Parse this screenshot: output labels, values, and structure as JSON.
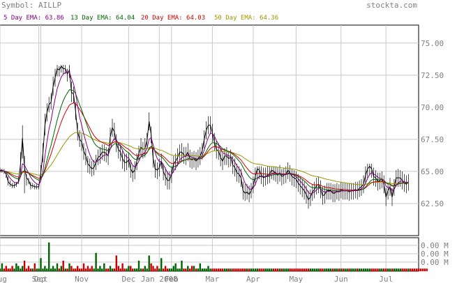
{
  "header": {
    "symbol_label": "Symbol: AILLP",
    "site": "stockta.com"
  },
  "legend": [
    {
      "label": "5 Day EMA: 63.86",
      "color": "#800080"
    },
    {
      "label": "13 Day EMA: 64.04",
      "color": "#006400"
    },
    {
      "label": "20 Day EMA: 64.03",
      "color": "#cc0000"
    },
    {
      "label": "50 Day EMA: 64.36",
      "color": "#999900"
    }
  ],
  "colors": {
    "price": "#000000",
    "grid": "#c8c8c8",
    "axis_text": "#808080",
    "header_text": "#808080",
    "volume_up": "#006400",
    "volume_down": "#cc0000"
  },
  "chart_data": {
    "type": "line",
    "title": "Symbol: AILLP",
    "ylim": [
      60.0,
      76.4
    ],
    "y_ticks": [
      62.5,
      65.0,
      67.5,
      70.0,
      72.5,
      75.0
    ],
    "y_tick_labels": [
      "62.50",
      "65.00",
      "67.50",
      "70.00",
      "72.50",
      "75.00"
    ],
    "x_tick_labels": [
      "Aug",
      "Sep",
      "Oct",
      "Nov",
      "Dec",
      "Jan 2008",
      "Feb",
      "Mar",
      "Apr",
      "May",
      "Jun",
      "Jul"
    ],
    "x_ticks_trading_day": [
      0,
      19,
      20,
      40,
      63,
      78,
      84,
      104,
      124,
      145,
      167,
      189
    ],
    "x_range_trading_days": [
      0,
      205
    ],
    "grid": true,
    "price_close": [
      65.1,
      65.1,
      65.0,
      64.8,
      64.2,
      64.0,
      63.9,
      63.9,
      64.0,
      64.2,
      65.5,
      67.6,
      65.3,
      64.5,
      64.3,
      63.9,
      63.9,
      63.8,
      63.8,
      63.8,
      64.9,
      66.4,
      68.6,
      69.6,
      70.2,
      70.4,
      71.6,
      72.3,
      73.0,
      72.9,
      73.2,
      73.0,
      73.0,
      72.6,
      72.9,
      71.2,
      71.0,
      69.7,
      68.1,
      67.5,
      67.3,
      66.6,
      66.2,
      65.6,
      65.4,
      65.2,
      65.3,
      65.7,
      66.1,
      66.2,
      66.5,
      66.5,
      66.4,
      66.2,
      67.7,
      68.4,
      68.1,
      67.2,
      66.7,
      66.5,
      66.0,
      65.7,
      65.7,
      65.9,
      65.2,
      64.9,
      65.1,
      65.8,
      66.4,
      66.9,
      66.7,
      66.8,
      67.4,
      68.9,
      67.9,
      66.0,
      65.2,
      65.1,
      65.3,
      65.8,
      65.0,
      64.6,
      64.3,
      64.3,
      64.8,
      65.6,
      65.8,
      66.1,
      66.5,
      66.5,
      66.3,
      66.2,
      66.5,
      66.0,
      65.9,
      66.0,
      65.8,
      66.0,
      66.2,
      66.6,
      67.5,
      68.2,
      68.6,
      68.6,
      68.0,
      67.3,
      66.7,
      66.6,
      66.1,
      65.8,
      66.2,
      66.2,
      66.0,
      66.1,
      65.5,
      65.3,
      64.9,
      64.8,
      64.5,
      63.5,
      63.3,
      63.4,
      63.2,
      63.5,
      63.9,
      64.6,
      65.2,
      65.1,
      64.7,
      64.5,
      64.6,
      64.7,
      64.8,
      65.1,
      65.0,
      64.9,
      64.7,
      64.9,
      64.6,
      64.7,
      64.8,
      65.1,
      64.9,
      64.6,
      64.5,
      64.4,
      64.1,
      63.9,
      63.7,
      63.5,
      63.2,
      62.8,
      63.0,
      63.4,
      63.6,
      63.9,
      64.0,
      63.6,
      63.1,
      63.2,
      63.5,
      63.5,
      63.5,
      63.3,
      63.3,
      63.5,
      63.4,
      63.6,
      63.5,
      63.5,
      63.5,
      63.4,
      63.5,
      63.5,
      63.6,
      63.5,
      63.7,
      63.8,
      64.0,
      64.7,
      65.2,
      65.4,
      65.2,
      64.6,
      64.5,
      64.2,
      64.3,
      64.4,
      64.0,
      63.0,
      63.5,
      63.8,
      63.0,
      63.8,
      64.5,
      64.5,
      64.5,
      64.3,
      64.1,
      64.0,
      64.2
    ],
    "price_high": [
      65.3,
      65.2,
      65.2,
      65.0,
      64.6,
      64.3,
      64.1,
      64.1,
      64.2,
      64.5,
      66.5,
      68.6,
      66.2,
      64.8,
      64.5,
      64.2,
      64.1,
      64.0,
      64.0,
      64.0,
      65.5,
      67.2,
      69.5,
      70.3,
      70.8,
      71.1,
      72.4,
      73.0,
      73.3,
      73.2,
      73.3,
      73.3,
      73.3,
      73.0,
      73.3,
      72.0,
      71.6,
      70.4,
      68.8,
      68.2,
      67.9,
      67.2,
      66.8,
      66.2,
      66.0,
      65.8,
      65.9,
      66.3,
      66.7,
      66.9,
      67.1,
      67.1,
      66.9,
      66.8,
      68.4,
      69.1,
      68.8,
      67.9,
      67.3,
      67.1,
      66.7,
      66.3,
      66.4,
      66.5,
      65.9,
      65.5,
      65.8,
      66.4,
      67.0,
      67.6,
      67.3,
      67.6,
      68.0,
      69.6,
      68.5,
      66.7,
      65.9,
      65.7,
      66.0,
      66.4,
      65.6,
      65.3,
      65.0,
      65.0,
      65.4,
      66.2,
      66.4,
      66.8,
      67.1,
      67.2,
      66.9,
      66.9,
      67.2,
      66.7,
      66.5,
      66.6,
      66.5,
      66.7,
      66.9,
      67.2,
      68.2,
      68.9,
      69.3,
      69.3,
      68.7,
      68.0,
      67.4,
      67.2,
      66.8,
      66.4,
      66.8,
      66.9,
      66.6,
      66.7,
      66.2,
      66.0,
      65.6,
      65.4,
      65.2,
      64.2,
      64.0,
      64.0,
      63.9,
      64.1,
      64.6,
      65.3,
      65.4,
      65.4,
      65.4,
      65.3,
      65.3,
      65.4,
      65.4,
      65.4,
      65.4,
      65.4,
      65.3,
      65.5,
      65.2,
      65.3,
      65.4,
      65.7,
      65.5,
      65.2,
      65.1,
      65.0,
      64.8,
      64.6,
      64.4,
      64.2,
      63.9,
      63.5,
      63.6,
      64.0,
      64.2,
      64.5,
      64.6,
      64.3,
      63.8,
      63.9,
      64.1,
      64.1,
      64.1,
      64.0,
      64.0,
      64.1,
      64.0,
      64.2,
      64.1,
      64.1,
      64.1,
      64.1,
      64.1,
      64.1,
      64.2,
      64.2,
      64.3,
      64.4,
      64.7,
      65.4,
      65.6,
      65.6,
      65.6,
      65.3,
      65.1,
      64.9,
      64.9,
      65.0,
      64.7,
      63.7,
      64.1,
      64.5,
      63.7,
      64.4,
      65.1,
      65.2,
      65.1,
      65.0,
      64.8,
      64.7,
      64.8
    ],
    "price_low": [
      64.9,
      64.9,
      64.8,
      64.5,
      63.9,
      63.8,
      63.7,
      63.7,
      63.8,
      64.0,
      64.7,
      66.0,
      63.3,
      63.9,
      64.0,
      63.6,
      63.7,
      63.6,
      63.6,
      63.6,
      64.3,
      65.7,
      67.8,
      68.9,
      69.6,
      69.8,
      70.9,
      71.6,
      72.4,
      72.4,
      72.7,
      72.6,
      72.6,
      72.0,
      72.3,
      70.4,
      70.3,
      69.0,
      67.4,
      66.9,
      66.6,
      65.9,
      65.5,
      64.9,
      64.8,
      64.6,
      64.7,
      65.1,
      65.5,
      65.6,
      65.9,
      65.8,
      65.7,
      65.5,
      67.0,
      67.7,
      67.4,
      66.5,
      66.0,
      65.8,
      65.2,
      65.0,
      65.1,
      65.3,
      64.5,
      64.2,
      64.4,
      65.1,
      65.8,
      66.2,
      66.0,
      66.1,
      66.8,
      68.2,
      67.2,
      65.3,
      64.5,
      64.4,
      64.6,
      65.2,
      64.3,
      63.9,
      63.6,
      63.6,
      64.1,
      64.9,
      65.1,
      65.4,
      65.9,
      65.8,
      65.6,
      65.5,
      65.8,
      65.3,
      65.2,
      65.3,
      65.1,
      65.3,
      65.5,
      65.9,
      66.8,
      67.5,
      67.9,
      67.9,
      67.3,
      66.6,
      66.0,
      65.9,
      65.4,
      65.1,
      65.5,
      65.5,
      65.3,
      65.4,
      64.8,
      64.6,
      64.2,
      64.1,
      63.8,
      62.8,
      62.7,
      62.8,
      62.6,
      62.9,
      63.3,
      63.9,
      64.5,
      64.4,
      64.0,
      63.8,
      63.9,
      64.0,
      64.1,
      64.4,
      64.3,
      64.2,
      64.0,
      64.2,
      63.9,
      64.0,
      64.1,
      64.4,
      64.2,
      63.9,
      63.8,
      63.7,
      63.4,
      63.2,
      63.0,
      62.8,
      62.5,
      62.1,
      62.3,
      62.7,
      62.9,
      63.2,
      63.3,
      62.9,
      62.4,
      62.5,
      62.8,
      62.8,
      62.8,
      62.6,
      62.6,
      62.8,
      62.7,
      62.9,
      62.8,
      62.8,
      62.8,
      62.7,
      62.8,
      62.8,
      62.9,
      62.8,
      63.0,
      63.1,
      63.3,
      64.0,
      64.5,
      64.7,
      64.5,
      63.9,
      63.8,
      63.5,
      63.6,
      63.7,
      63.3,
      62.3,
      62.8,
      63.1,
      62.3,
      63.1,
      63.8,
      63.8,
      63.8,
      63.6,
      63.4,
      63.3,
      63.5
    ],
    "series": [
      {
        "name": "5 Day EMA",
        "key": "ema5"
      },
      {
        "name": "13 Day EMA",
        "key": "ema13"
      },
      {
        "name": "20 Day EMA",
        "key": "ema20"
      },
      {
        "name": "50 Day EMA",
        "key": "ema50"
      }
    ],
    "ema_periods": {
      "ema5": 5,
      "ema13": 13,
      "ema20": 20,
      "ema50": 50
    },
    "ema_seed": 65.0,
    "volume": {
      "y_tick_labels": [
        "0.00 M",
        "0.00 M",
        "0.00 M"
      ],
      "values": [
        1,
        3,
        1,
        2,
        1,
        1,
        2,
        1,
        3,
        2,
        1,
        2,
        4,
        1,
        2,
        1,
        1,
        3,
        1,
        1,
        5,
        1,
        2,
        1,
        11,
        1,
        2,
        1,
        3,
        1,
        2,
        4,
        1,
        1,
        3,
        2,
        1,
        1,
        2,
        1,
        1,
        3,
        1,
        2,
        1,
        2,
        1,
        7,
        1,
        2,
        1,
        3,
        1,
        1,
        2,
        1,
        1,
        6,
        2,
        1,
        3,
        1,
        1,
        2,
        2,
        1,
        1,
        1,
        4,
        1,
        1,
        2,
        1,
        6,
        3,
        2,
        1,
        2,
        1,
        5,
        1,
        2,
        1,
        1,
        1,
        2,
        3,
        1,
        1,
        4,
        1,
        1,
        2,
        1,
        2,
        2,
        1,
        1,
        3,
        1,
        1,
        1,
        2,
        1,
        1,
        1,
        1,
        1,
        1,
        1,
        1,
        1,
        1,
        1,
        1,
        1,
        1,
        1,
        1,
        1,
        1,
        1,
        1,
        1,
        1,
        1,
        1,
        1,
        1,
        1,
        1,
        1,
        1,
        1,
        1,
        1,
        1,
        1,
        1,
        1,
        1,
        1,
        1,
        1,
        1,
        1,
        1,
        1,
        1,
        1,
        1,
        1,
        1,
        1,
        1,
        1,
        1,
        1,
        1,
        1,
        1,
        1,
        1,
        1,
        1,
        1,
        1,
        1,
        1,
        1,
        1,
        1,
        1,
        1,
        1,
        1,
        1,
        1,
        1,
        1,
        1,
        1,
        1,
        1,
        1,
        1,
        1,
        1,
        1,
        1,
        1,
        1,
        1,
        1,
        1,
        1,
        1,
        1,
        1,
        1,
        1,
        1,
        1,
        1,
        1,
        1,
        1,
        1,
        1,
        1
      ],
      "vmax": 12
    }
  }
}
